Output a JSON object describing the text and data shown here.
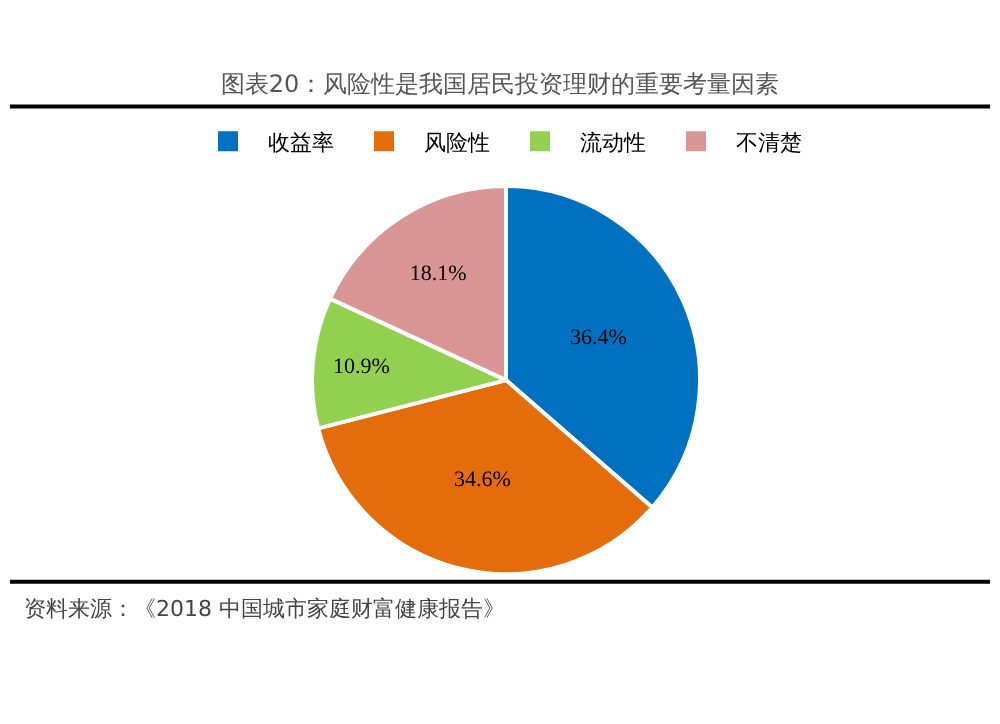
{
  "chart_data": {
    "type": "pie",
    "title": "图表20：风险性是我国居民投资理财的重要考量因素",
    "categories": [
      "收益率",
      "风险性",
      "流动性",
      "不清楚"
    ],
    "values": [
      36.4,
      34.6,
      10.9,
      18.1
    ],
    "colors": [
      "#0070c0",
      "#e46c0a",
      "#92d050",
      "#d99694"
    ],
    "value_labels": [
      "36.4%",
      "34.6%",
      "10.9%",
      "18.1%"
    ],
    "legend": "top",
    "annotations": [
      "资料来源：《2018 中国城市家庭财富健康报告》"
    ]
  }
}
